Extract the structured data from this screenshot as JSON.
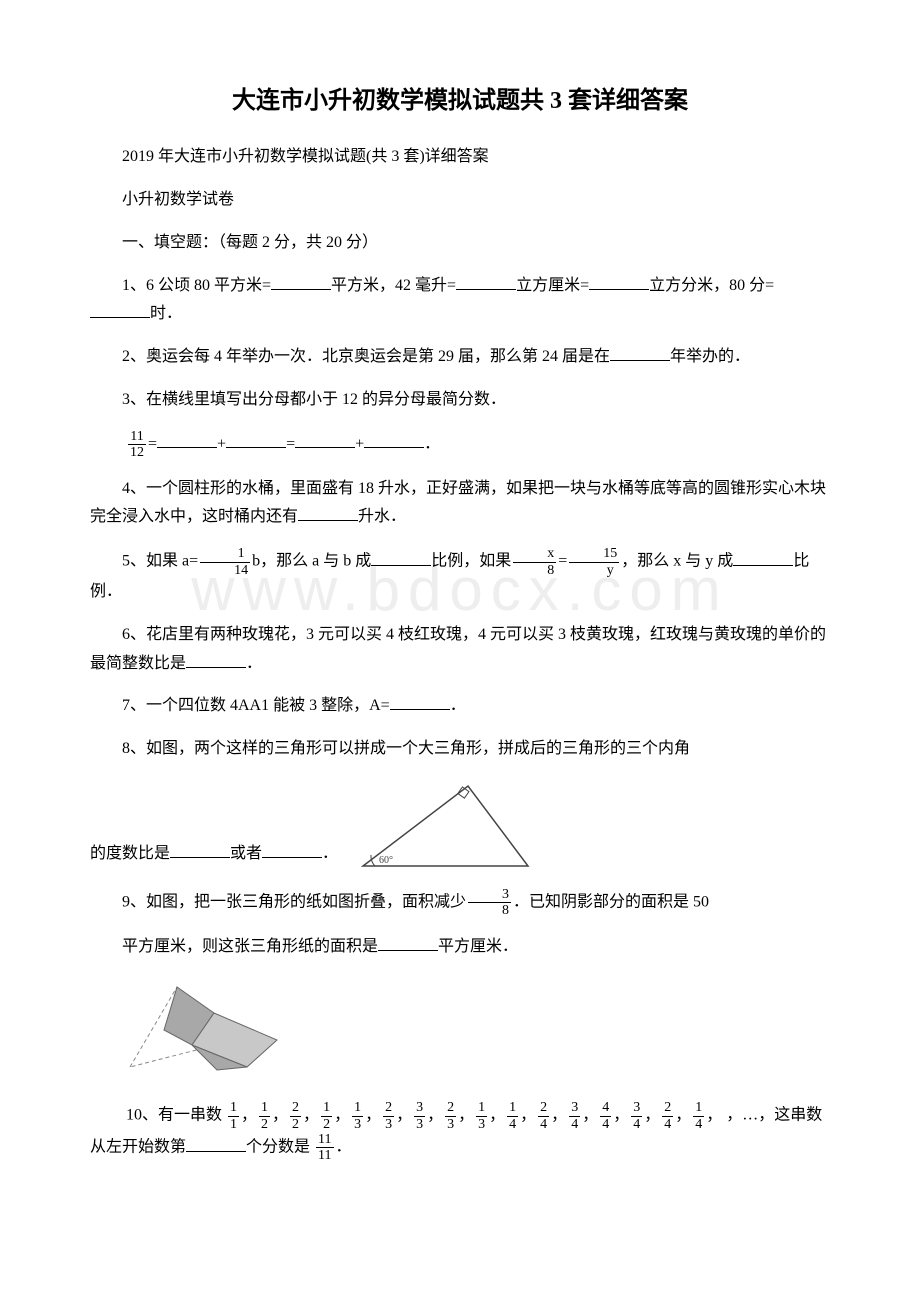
{
  "title": "大连市小升初数学模拟试题共 3 套详细答案",
  "subtitle": "2019 年大连市小升初数学模拟试题(共 3 套)详细答案",
  "paper_label": "小升初数学试卷",
  "section1": "一、填空题：（每题 2 分，共 20 分）",
  "q1_a": "1、6 公顷 80 平方米=",
  "q1_b": "平方米，42 毫升=",
  "q1_c": "立方厘米=",
  "q1_d": "立方分米，80 分=",
  "q1_e": "时．",
  "q2_a": "2、奥运会每 4 年举办一次．北京奥运会是第 29 届，那么第 24 届是在",
  "q2_b": "年举办的．",
  "q3": "3、在横线里填写出分母都小于 12 的异分母最简分数．",
  "q3_frac_num": "11",
  "q3_frac_den": "12",
  "q3_eq": "=",
  "q3_plus": "+",
  "q3_dot": "．",
  "q4_a": "4、一个圆柱形的水桶，里面盛有 18 升水，正好盛满，如果把一块与水桶等底等高的圆锥形实心木块完全浸入水中，这时桶内还有",
  "q4_b": "升水．",
  "q5_a": "5、如果 a=",
  "q5_frac1_num": "1",
  "q5_frac1_den": "14",
  "q5_b": "b，那么 a 与 b 成",
  "q5_c": "比例，如果",
  "q5_frac2_num": "x",
  "q5_frac2_den": "8",
  "q5_eq": "=",
  "q5_frac3_num": "15",
  "q5_frac3_den": "y",
  "q5_d": "，那么 x 与 y 成",
  "q5_e": "比例．",
  "q6_a": "6、花店里有两种玫瑰花，3 元可以买 4 枝红玫瑰，4 元可以买 3 枝黄玫瑰，红玫瑰与黄玫瑰的单价的最简整数比是",
  "q6_b": "．",
  "q7_a": "7、一个四位数 4AA1 能被 3 整除，A=",
  "q7_b": "．",
  "q8_intro": "8、如图，两个这样的三角形可以拼成一个大三角形，拼成后的三角形的三个内角",
  "q8_a": "的度数比是",
  "q8_b": "或者",
  "q8_c": "．",
  "triangle_angle": "60°",
  "q9_a": "9、如图，把一张三角形的纸如图折叠，面积减少",
  "q9_frac_num": "3",
  "q9_frac_den": "8",
  "q9_b": "．已知阴影部分的面积是 50",
  "q9_c": "平方厘米，则这张三角形纸的面积是",
  "q9_d": "平方厘米．",
  "q10_a": "10、有一串数",
  "q10_b": "，…，这串数从左开始数第",
  "q10_c": "个分数是",
  "q10_d": "．",
  "q10_target_num": "11",
  "q10_target_den": "11",
  "q10_comma": "，",
  "fracs": [
    {
      "n": "1",
      "d": "1"
    },
    {
      "n": "1",
      "d": "2"
    },
    {
      "n": "2",
      "d": "2"
    },
    {
      "n": "1",
      "d": "2"
    },
    {
      "n": "1",
      "d": "3"
    },
    {
      "n": "2",
      "d": "3"
    },
    {
      "n": "3",
      "d": "3"
    },
    {
      "n": "2",
      "d": "3"
    },
    {
      "n": "1",
      "d": "3"
    },
    {
      "n": "1",
      "d": "4"
    },
    {
      "n": "2",
      "d": "4"
    },
    {
      "n": "3",
      "d": "4"
    },
    {
      "n": "4",
      "d": "4"
    },
    {
      "n": "3",
      "d": "4"
    },
    {
      "n": "2",
      "d": "4"
    },
    {
      "n": "1",
      "d": "4"
    }
  ],
  "watermark": "www.bdocx.com",
  "colors": {
    "text": "#000000",
    "bg": "#ffffff",
    "watermark": "#eeeeee",
    "triangle_fill": "#ffffff",
    "triangle_stroke": "#444444",
    "fold_fill_dark": "#a8a8a8",
    "fold_fill_light": "#c8c8c8",
    "fold_stroke": "#666666",
    "fold_dash": "#888888"
  }
}
